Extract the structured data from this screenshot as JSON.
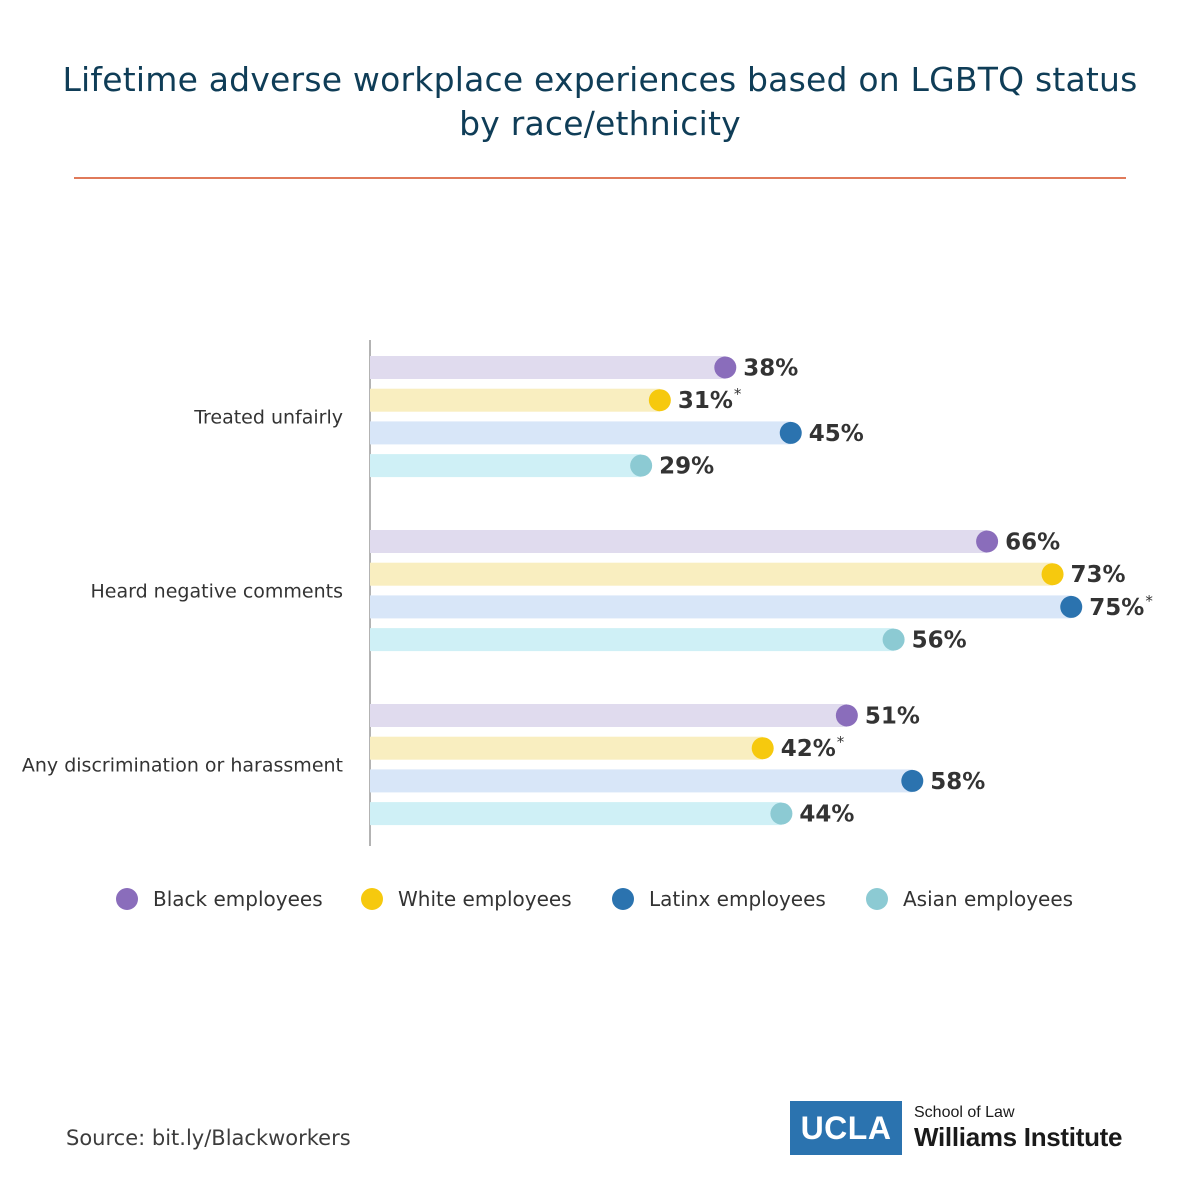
{
  "title": "Lifetime adverse workplace experiences based on LGBTQ status by race/ethnicity",
  "source": "Source: bit.ly/Blackworkers",
  "logo": {
    "box": "UCLA",
    "sub": "School of Law",
    "main": "Williams Institute"
  },
  "colors": {
    "title": "#0f3d57",
    "rule": "#e07a5a",
    "axis": "#9a9a9a",
    "series": [
      {
        "dot": "#8a6dbb",
        "bar": "#e0dbee"
      },
      {
        "dot": "#f6c90e",
        "bar": "#f9eec0"
      },
      {
        "dot": "#2b73af",
        "bar": "#d8e6f8"
      },
      {
        "dot": "#8ccad3",
        "bar": "#cff0f6"
      }
    ]
  },
  "chart_data": {
    "type": "bar",
    "orientation": "horizontal",
    "categories": [
      "Treated unfairly",
      "Heard negative comments",
      "Any discrimination or harassment"
    ],
    "series": [
      {
        "name": "Black employees",
        "values": [
          38,
          66,
          51
        ],
        "labels": [
          "38%",
          "66%",
          "51%"
        ],
        "asterisk": [
          false,
          false,
          false
        ]
      },
      {
        "name": "White employees",
        "values": [
          31,
          73,
          42
        ],
        "labels": [
          "31%",
          "73%",
          "42%"
        ],
        "asterisk": [
          true,
          false,
          true
        ]
      },
      {
        "name": "Latinx employees",
        "values": [
          45,
          75,
          58
        ],
        "labels": [
          "45%",
          "75%",
          "58%"
        ],
        "asterisk": [
          false,
          true,
          false
        ]
      },
      {
        "name": "Asian employees",
        "values": [
          29,
          56,
          44
        ],
        "labels": [
          "29%",
          "56%",
          "44%"
        ],
        "asterisk": [
          false,
          false,
          false
        ]
      }
    ],
    "xlim": [
      0,
      100
    ],
    "grid": false,
    "legend": "bottom"
  }
}
